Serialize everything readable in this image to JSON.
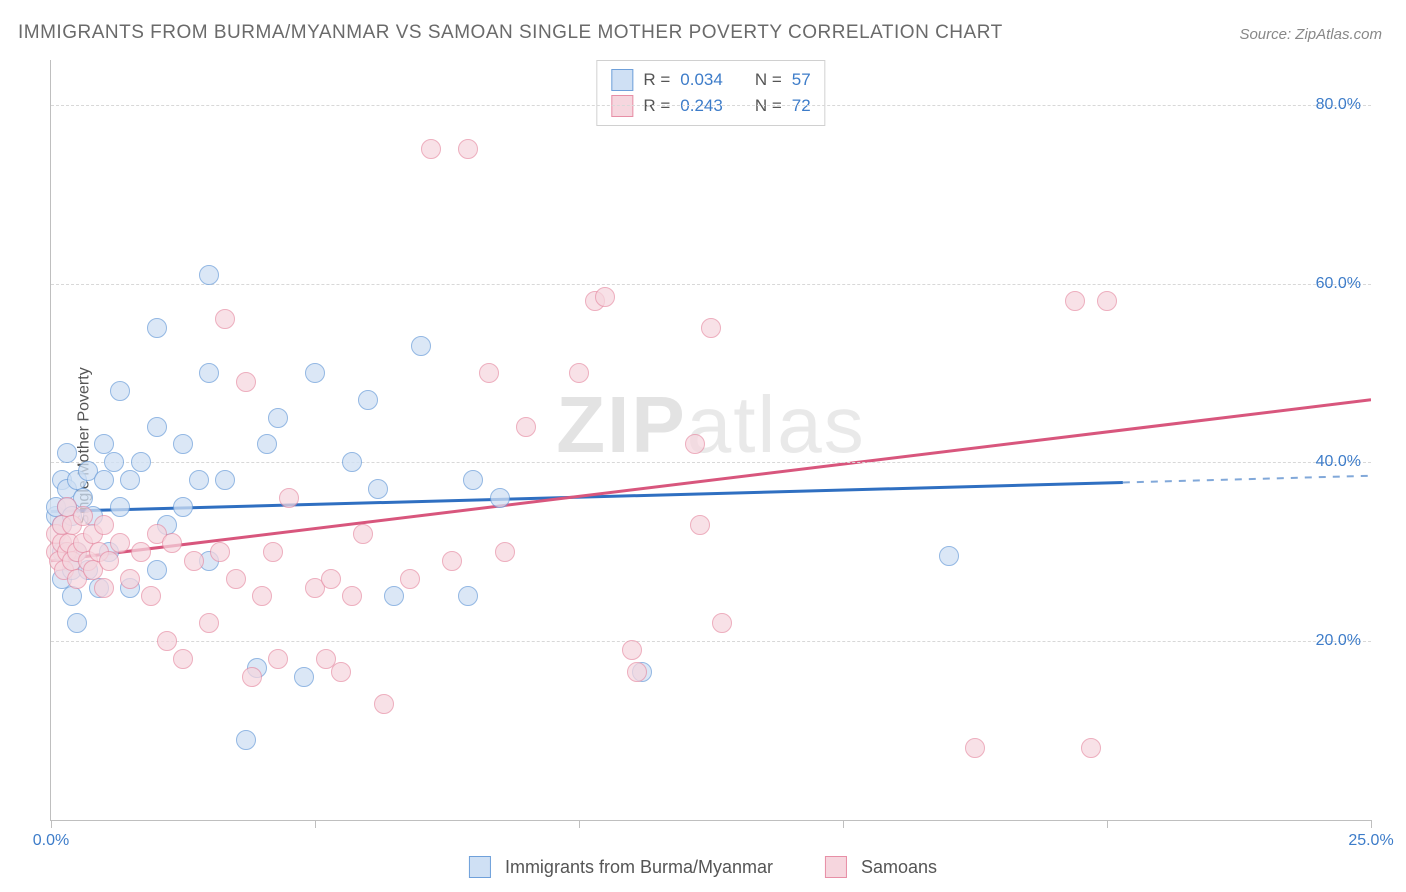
{
  "title": "IMMIGRANTS FROM BURMA/MYANMAR VS SAMOAN SINGLE MOTHER POVERTY CORRELATION CHART",
  "source": "Source: ZipAtlas.com",
  "watermark_bold": "ZIP",
  "watermark_rest": "atlas",
  "chart": {
    "type": "scatter",
    "ylabel": "Single Mother Poverty",
    "xlim": [
      0,
      25
    ],
    "ylim": [
      0,
      85
    ],
    "x_ticks_major": [
      0,
      5,
      10,
      15,
      20,
      25
    ],
    "x_tick_labels": {
      "0": "0.0%",
      "25": "25.0%"
    },
    "y_ticks": [
      20,
      40,
      60,
      80
    ],
    "y_tick_labels": {
      "20": "20.0%",
      "40": "40.0%",
      "60": "60.0%",
      "80": "80.0%"
    },
    "grid_color": "#d8d8d8",
    "axis_color": "#bfbfbf",
    "tick_label_color": "#3d7cc9",
    "background_color": "#ffffff",
    "marker_radius": 9,
    "marker_border_width": 1.5,
    "series": [
      {
        "name": "Immigrants from Burma/Myanmar",
        "R": "0.034",
        "N": "57",
        "fill": "#cfe0f4",
        "stroke": "#6fa0da",
        "fill_opacity": 0.75,
        "trend": {
          "color": "#2f6fc1",
          "width": 3,
          "y_at_x0": 34.5,
          "y_at_xmax": 38.5,
          "x_solid_end": 20.3
        },
        "points": [
          [
            0.1,
            34
          ],
          [
            0.1,
            35
          ],
          [
            0.2,
            27
          ],
          [
            0.2,
            30
          ],
          [
            0.2,
            38
          ],
          [
            0.2,
            33
          ],
          [
            0.3,
            35
          ],
          [
            0.3,
            37
          ],
          [
            0.3,
            41
          ],
          [
            0.4,
            25
          ],
          [
            0.4,
            28
          ],
          [
            0.4,
            34
          ],
          [
            0.5,
            22
          ],
          [
            0.5,
            30
          ],
          [
            0.5,
            38
          ],
          [
            0.6,
            36
          ],
          [
            0.7,
            28
          ],
          [
            0.7,
            39
          ],
          [
            0.8,
            34
          ],
          [
            0.9,
            26
          ],
          [
            1.0,
            38
          ],
          [
            1.0,
            42
          ],
          [
            1.1,
            30
          ],
          [
            1.2,
            40
          ],
          [
            1.3,
            35
          ],
          [
            1.3,
            48
          ],
          [
            1.5,
            26
          ],
          [
            1.5,
            38
          ],
          [
            1.7,
            40
          ],
          [
            2.0,
            28
          ],
          [
            2.0,
            44
          ],
          [
            2.0,
            55
          ],
          [
            2.2,
            33
          ],
          [
            2.5,
            35
          ],
          [
            2.5,
            42
          ],
          [
            2.8,
            38
          ],
          [
            3.0,
            29
          ],
          [
            3.0,
            50
          ],
          [
            3.0,
            61
          ],
          [
            3.3,
            38
          ],
          [
            3.7,
            9
          ],
          [
            3.9,
            17
          ],
          [
            4.1,
            42
          ],
          [
            4.3,
            45
          ],
          [
            4.8,
            16
          ],
          [
            5.0,
            50
          ],
          [
            5.7,
            40
          ],
          [
            6.0,
            47
          ],
          [
            6.2,
            37
          ],
          [
            6.5,
            25
          ],
          [
            7.0,
            53
          ],
          [
            7.9,
            25
          ],
          [
            8.0,
            38
          ],
          [
            8.5,
            36
          ],
          [
            11.2,
            16.5
          ],
          [
            17.0,
            29.5
          ]
        ]
      },
      {
        "name": "Samoans",
        "R": "0.243",
        "N": "72",
        "fill": "#f6d6de",
        "stroke": "#e78fa6",
        "fill_opacity": 0.72,
        "trend": {
          "color": "#d8567d",
          "width": 3,
          "y_at_x0": 29,
          "y_at_xmax": 47,
          "x_solid_end": 25
        },
        "points": [
          [
            0.1,
            30
          ],
          [
            0.1,
            32
          ],
          [
            0.15,
            29
          ],
          [
            0.2,
            31
          ],
          [
            0.2,
            33
          ],
          [
            0.25,
            28
          ],
          [
            0.3,
            30
          ],
          [
            0.3,
            35
          ],
          [
            0.35,
            31
          ],
          [
            0.4,
            29
          ],
          [
            0.4,
            33
          ],
          [
            0.5,
            27
          ],
          [
            0.5,
            30
          ],
          [
            0.6,
            31
          ],
          [
            0.6,
            34
          ],
          [
            0.7,
            29
          ],
          [
            0.8,
            28
          ],
          [
            0.8,
            32
          ],
          [
            0.9,
            30
          ],
          [
            1.0,
            26
          ],
          [
            1.0,
            33
          ],
          [
            1.1,
            29
          ],
          [
            1.3,
            31
          ],
          [
            1.5,
            27
          ],
          [
            1.7,
            30
          ],
          [
            1.9,
            25
          ],
          [
            2.0,
            32
          ],
          [
            2.2,
            20
          ],
          [
            2.3,
            31
          ],
          [
            2.5,
            18
          ],
          [
            2.7,
            29
          ],
          [
            3.0,
            22
          ],
          [
            3.2,
            30
          ],
          [
            3.3,
            56
          ],
          [
            3.5,
            27
          ],
          [
            3.7,
            49
          ],
          [
            3.8,
            16
          ],
          [
            4.0,
            25
          ],
          [
            4.2,
            30
          ],
          [
            4.3,
            18
          ],
          [
            4.5,
            36
          ],
          [
            5.0,
            26
          ],
          [
            5.2,
            18
          ],
          [
            5.3,
            27
          ],
          [
            5.5,
            16.5
          ],
          [
            5.7,
            25
          ],
          [
            5.9,
            32
          ],
          [
            6.3,
            13
          ],
          [
            6.8,
            27
          ],
          [
            7.2,
            75
          ],
          [
            7.6,
            29
          ],
          [
            7.9,
            75
          ],
          [
            8.3,
            50
          ],
          [
            8.6,
            30
          ],
          [
            9.0,
            44
          ],
          [
            10.0,
            50
          ],
          [
            10.3,
            58
          ],
          [
            10.5,
            58.5
          ],
          [
            11.0,
            19
          ],
          [
            11.1,
            16.5
          ],
          [
            12.2,
            42
          ],
          [
            12.3,
            33
          ],
          [
            12.5,
            55
          ],
          [
            12.7,
            22
          ],
          [
            17.5,
            8
          ],
          [
            19.4,
            58
          ],
          [
            19.7,
            8
          ],
          [
            20.0,
            58
          ]
        ]
      }
    ],
    "bottom_legend_labels": [
      "Immigrants from Burma/Myanmar",
      "Samoans"
    ]
  }
}
